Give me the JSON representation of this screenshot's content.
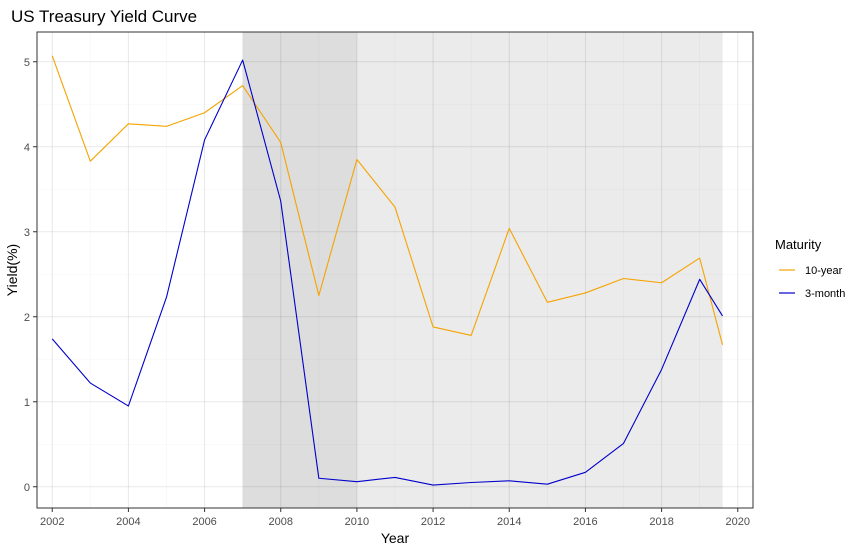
{
  "chart_data": {
    "type": "line",
    "title": "US Treasury Yield Curve",
    "xlabel": "Year",
    "ylabel": "Yield(%)",
    "xlim": [
      2001.6,
      2020.4
    ],
    "ylim": [
      -0.25,
      5.35
    ],
    "x_ticks": [
      2002,
      2004,
      2006,
      2008,
      2010,
      2012,
      2014,
      2016,
      2018,
      2020
    ],
    "y_ticks": [
      0,
      1,
      2,
      3,
      4,
      5
    ],
    "grid": true,
    "legend": {
      "title": "Maturity",
      "position": "right"
    },
    "shaded_regions": [
      {
        "x_start": 2007,
        "x_end": 2010,
        "color": "#dddddd"
      },
      {
        "x_start": 2010,
        "x_end": 2019.6,
        "color": "#ebebeb"
      }
    ],
    "series": [
      {
        "name": "10-year",
        "color": "#f5a300",
        "x": [
          2002,
          2003,
          2004,
          2005,
          2006,
          2007,
          2008,
          2009,
          2010,
          2011,
          2012,
          2013,
          2014,
          2015,
          2016,
          2017,
          2018,
          2019,
          2019.6
        ],
        "values": [
          5.07,
          3.83,
          4.27,
          4.24,
          4.4,
          4.72,
          4.05,
          2.25,
          3.85,
          3.29,
          1.88,
          1.78,
          3.04,
          2.17,
          2.28,
          2.45,
          2.4,
          2.69,
          1.67
        ]
      },
      {
        "name": "3-month",
        "color": "#0000cc",
        "x": [
          2002,
          2003,
          2004,
          2005,
          2006,
          2007,
          2008,
          2009,
          2010,
          2011,
          2012,
          2013,
          2014,
          2015,
          2016,
          2017,
          2018,
          2019,
          2019.6
        ],
        "values": [
          1.74,
          1.22,
          0.95,
          2.23,
          4.08,
          5.02,
          3.36,
          0.1,
          0.06,
          0.11,
          0.02,
          0.05,
          0.07,
          0.03,
          0.17,
          0.51,
          1.38,
          2.44,
          2.01
        ]
      }
    ]
  }
}
